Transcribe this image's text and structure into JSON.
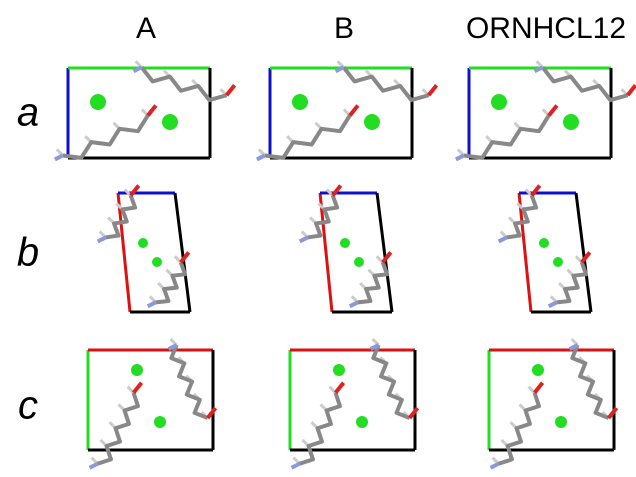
{
  "columns": [
    "A",
    "B",
    "ORNHCL12"
  ],
  "rows": [
    "a",
    "b",
    "c"
  ]
}
